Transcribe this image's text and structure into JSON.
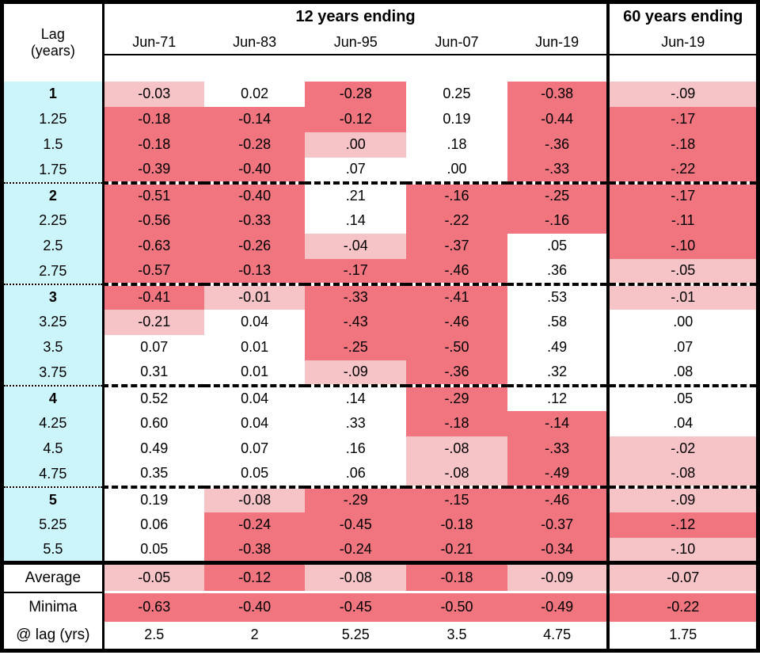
{
  "header": {
    "lag_label_line1": "Lag",
    "lag_label_line2": "(years)",
    "group12": "12 years ending",
    "group60": "60 years ending"
  },
  "colors": {
    "negative_strong": "#F0757E",
    "negative_mild": "#F6C3C7",
    "positive_white": "#FFFFFF",
    "lag_column_cyan": "#CBF5FA",
    "border_black": "#000000"
  },
  "chart_data": {
    "type": "heatmap-table",
    "row_axis_label": "Lag (years)",
    "column_groups": [
      "12 years ending",
      "60 years ending"
    ],
    "columns_12yr": [
      "Jun-71",
      "Jun-83",
      "Jun-95",
      "Jun-07",
      "Jun-19"
    ],
    "column_60yr": "Jun-19",
    "shading_key": {
      "d": "strong negative (dark pink)",
      "l": "mild negative (light pink)",
      "w": "white"
    },
    "rows": [
      {
        "lag": "1",
        "cells": [
          [
            "-0.03",
            "l"
          ],
          [
            "0.02",
            "w"
          ],
          [
            "-0.28",
            "d"
          ],
          [
            "0.25",
            "w"
          ],
          [
            "-0.38",
            "d"
          ],
          [
            "-.09",
            "l"
          ]
        ]
      },
      {
        "lag": "1.25",
        "cells": [
          [
            "-0.18",
            "d"
          ],
          [
            "-0.14",
            "d"
          ],
          [
            "-0.12",
            "d"
          ],
          [
            "0.19",
            "w"
          ],
          [
            "-0.44",
            "d"
          ],
          [
            "-.17",
            "d"
          ]
        ]
      },
      {
        "lag": "1.5",
        "cells": [
          [
            "-0.18",
            "d"
          ],
          [
            "-0.28",
            "d"
          ],
          [
            ".00",
            "l"
          ],
          [
            ".18",
            "w"
          ],
          [
            "-.36",
            "d"
          ],
          [
            "-.18",
            "d"
          ]
        ]
      },
      {
        "lag": "1.75",
        "cells": [
          [
            "-0.39",
            "d"
          ],
          [
            "-0.40",
            "d"
          ],
          [
            ".07",
            "w"
          ],
          [
            ".00",
            "w"
          ],
          [
            "-.33",
            "d"
          ],
          [
            "-.22",
            "d"
          ]
        ]
      },
      {
        "lag": "2",
        "cells": [
          [
            "-0.51",
            "d"
          ],
          [
            "-0.40",
            "d"
          ],
          [
            ".21",
            "w"
          ],
          [
            "-.16",
            "d"
          ],
          [
            "-.25",
            "d"
          ],
          [
            "-.17",
            "d"
          ]
        ]
      },
      {
        "lag": "2.25",
        "cells": [
          [
            "-0.56",
            "d"
          ],
          [
            "-0.33",
            "d"
          ],
          [
            ".14",
            "w"
          ],
          [
            "-.22",
            "d"
          ],
          [
            "-.16",
            "d"
          ],
          [
            "-.11",
            "d"
          ]
        ]
      },
      {
        "lag": "2.5",
        "cells": [
          [
            "-0.63",
            "d"
          ],
          [
            "-0.26",
            "d"
          ],
          [
            "-.04",
            "l"
          ],
          [
            "-.37",
            "d"
          ],
          [
            ".05",
            "w"
          ],
          [
            "-.10",
            "d"
          ]
        ]
      },
      {
        "lag": "2.75",
        "cells": [
          [
            "-0.57",
            "d"
          ],
          [
            "-0.13",
            "d"
          ],
          [
            "-.17",
            "d"
          ],
          [
            "-.46",
            "d"
          ],
          [
            ".36",
            "w"
          ],
          [
            "-.05",
            "l"
          ]
        ]
      },
      {
        "lag": "3",
        "cells": [
          [
            "-0.41",
            "d"
          ],
          [
            "-0.01",
            "l"
          ],
          [
            "-.33",
            "d"
          ],
          [
            "-.41",
            "d"
          ],
          [
            ".53",
            "w"
          ],
          [
            "-.01",
            "l"
          ]
        ]
      },
      {
        "lag": "3.25",
        "cells": [
          [
            "-0.21",
            "l"
          ],
          [
            "0.04",
            "w"
          ],
          [
            "-.43",
            "d"
          ],
          [
            "-.46",
            "d"
          ],
          [
            ".58",
            "w"
          ],
          [
            ".00",
            "w"
          ]
        ]
      },
      {
        "lag": "3.5",
        "cells": [
          [
            "0.07",
            "w"
          ],
          [
            "0.01",
            "w"
          ],
          [
            "-.25",
            "d"
          ],
          [
            "-.50",
            "d"
          ],
          [
            ".49",
            "w"
          ],
          [
            ".07",
            "w"
          ]
        ]
      },
      {
        "lag": "3.75",
        "cells": [
          [
            "0.31",
            "w"
          ],
          [
            "0.01",
            "w"
          ],
          [
            "-.09",
            "l"
          ],
          [
            "-.36",
            "d"
          ],
          [
            ".32",
            "w"
          ],
          [
            ".08",
            "w"
          ]
        ]
      },
      {
        "lag": "4",
        "cells": [
          [
            "0.52",
            "w"
          ],
          [
            "0.04",
            "w"
          ],
          [
            ".14",
            "w"
          ],
          [
            "-.29",
            "d"
          ],
          [
            ".12",
            "w"
          ],
          [
            ".05",
            "w"
          ]
        ]
      },
      {
        "lag": "4.25",
        "cells": [
          [
            "0.60",
            "w"
          ],
          [
            "0.04",
            "w"
          ],
          [
            ".33",
            "w"
          ],
          [
            "-.18",
            "d"
          ],
          [
            "-.14",
            "d"
          ],
          [
            ".04",
            "w"
          ]
        ]
      },
      {
        "lag": "4.5",
        "cells": [
          [
            "0.49",
            "w"
          ],
          [
            "0.07",
            "w"
          ],
          [
            ".16",
            "w"
          ],
          [
            "-.08",
            "l"
          ],
          [
            "-.33",
            "d"
          ],
          [
            "-.02",
            "l"
          ]
        ]
      },
      {
        "lag": "4.75",
        "cells": [
          [
            "0.35",
            "w"
          ],
          [
            "0.05",
            "w"
          ],
          [
            ".06",
            "w"
          ],
          [
            "-.08",
            "l"
          ],
          [
            "-.49",
            "d"
          ],
          [
            "-.08",
            "l"
          ]
        ]
      },
      {
        "lag": "5",
        "cells": [
          [
            "0.19",
            "w"
          ],
          [
            "-0.08",
            "l"
          ],
          [
            "-.29",
            "d"
          ],
          [
            "-.15",
            "d"
          ],
          [
            "-.46",
            "d"
          ],
          [
            "-.09",
            "l"
          ]
        ]
      },
      {
        "lag": "5.25",
        "cells": [
          [
            "0.06",
            "w"
          ],
          [
            "-0.24",
            "d"
          ],
          [
            "-0.45",
            "d"
          ],
          [
            "-0.18",
            "d"
          ],
          [
            "-0.37",
            "d"
          ],
          [
            "-.12",
            "d"
          ]
        ]
      },
      {
        "lag": "5.5",
        "cells": [
          [
            "0.05",
            "w"
          ],
          [
            "-0.38",
            "d"
          ],
          [
            "-0.24",
            "d"
          ],
          [
            "-0.21",
            "d"
          ],
          [
            "-0.34",
            "d"
          ],
          [
            "-.10",
            "l"
          ]
        ]
      }
    ],
    "summary_rows": [
      {
        "label": "Average",
        "cells": [
          [
            "-0.05",
            "l"
          ],
          [
            "-0.12",
            "d"
          ],
          [
            "-0.08",
            "l"
          ],
          [
            "-0.18",
            "d"
          ],
          [
            "-0.09",
            "l"
          ],
          [
            "-0.07",
            "l"
          ]
        ]
      },
      {
        "label": "Minima",
        "cells": [
          [
            "-0.63",
            "d"
          ],
          [
            "-0.40",
            "d"
          ],
          [
            "-0.45",
            "d"
          ],
          [
            "-0.50",
            "d"
          ],
          [
            "-0.49",
            "d"
          ],
          [
            "-0.22",
            "d"
          ]
        ]
      },
      {
        "label": "@ lag (yrs)",
        "cells": [
          [
            "2.5",
            "w"
          ],
          [
            "2",
            "w"
          ],
          [
            "5.25",
            "w"
          ],
          [
            "3.5",
            "w"
          ],
          [
            "4.75",
            "w"
          ],
          [
            "1.75",
            "w"
          ]
        ]
      }
    ]
  }
}
